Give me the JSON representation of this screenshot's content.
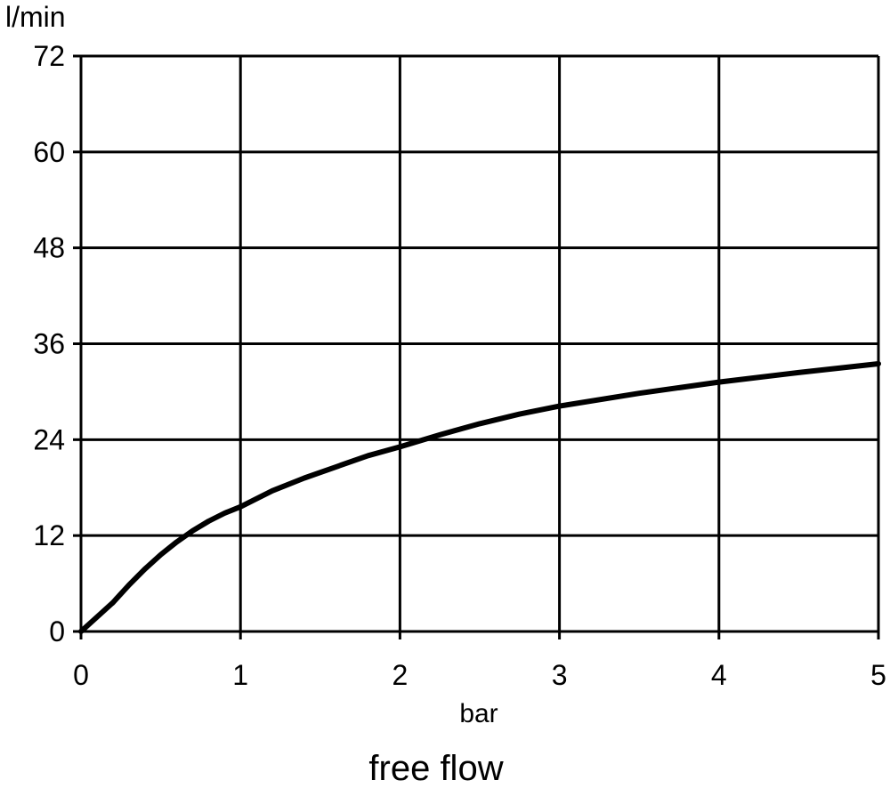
{
  "chart_data": {
    "type": "line",
    "y_unit_label": "l/min",
    "xlabel": "bar",
    "caption": "free flow",
    "xlim": [
      0,
      5
    ],
    "ylim": [
      0,
      72
    ],
    "x_ticks": [
      0,
      1,
      2,
      3,
      4,
      5
    ],
    "y_ticks": [
      0,
      12,
      24,
      36,
      48,
      60,
      72
    ],
    "grid": true,
    "series": [
      {
        "x": [
          0,
          0.1,
          0.2,
          0.3,
          0.4,
          0.5,
          0.6,
          0.7,
          0.8,
          0.9,
          1.0,
          1.2,
          1.4,
          1.6,
          1.8,
          2.0,
          2.25,
          2.5,
          2.75,
          3.0,
          3.5,
          4.0,
          4.5,
          5.0
        ],
        "y": [
          0,
          1.8,
          3.6,
          5.8,
          7.8,
          9.6,
          11.2,
          12.6,
          13.8,
          14.8,
          15.6,
          17.6,
          19.2,
          20.6,
          22.0,
          23.1,
          24.6,
          26.0,
          27.2,
          28.2,
          29.8,
          31.2,
          32.4,
          33.5
        ]
      }
    ],
    "line_color": "#000000"
  }
}
